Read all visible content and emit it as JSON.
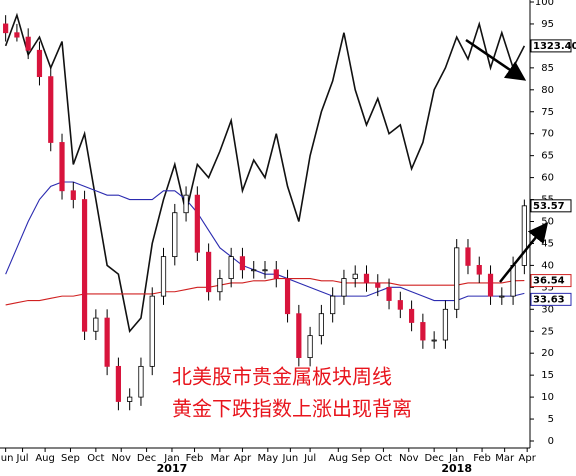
{
  "chart_data": {
    "type": "candlestick",
    "annotations": [
      "北美股市贵金属板块周线",
      "黄金下跌指数上涨出现背离"
    ],
    "last_price_label": "1323.40",
    "xlim": [
      0,
      94
    ],
    "xticks": [
      {
        "value": 1,
        "label": "Jun"
      },
      {
        "value": 4,
        "label": "Jul"
      },
      {
        "value": 8,
        "label": "Aug"
      },
      {
        "value": 12.5,
        "label": "Sep"
      },
      {
        "value": 17,
        "label": "Oct"
      },
      {
        "value": 21.5,
        "label": "Nov"
      },
      {
        "value": 26,
        "label": "Dec"
      },
      {
        "value": 30.5,
        "label": "Jan"
      },
      {
        "value": 34.5,
        "label": "Feb"
      },
      {
        "value": 39,
        "label": "Mar"
      },
      {
        "value": 43,
        "label": "Apr"
      },
      {
        "value": 47.5,
        "label": "May"
      },
      {
        "value": 51.5,
        "label": "Jun"
      },
      {
        "value": 55,
        "label": "Jul"
      },
      {
        "value": 60,
        "label": "Aug"
      },
      {
        "value": 64,
        "label": "Sep"
      },
      {
        "value": 68,
        "label": "Oct"
      },
      {
        "value": 72.5,
        "label": "Nov"
      },
      {
        "value": 77,
        "label": "Dec"
      },
      {
        "value": 81,
        "label": "Jan"
      },
      {
        "value": 85.5,
        "label": "Feb"
      },
      {
        "value": 89.5,
        "label": "Mar"
      },
      {
        "value": 93.5,
        "label": "Apr"
      }
    ],
    "year_ticks": [
      {
        "value": 30.5,
        "label": "2017"
      },
      {
        "value": 81,
        "label": "2018"
      }
    ],
    "ylim": [
      0,
      100
    ],
    "yticks": [
      0,
      5,
      10,
      15,
      20,
      25,
      30,
      35,
      40,
      45,
      50,
      55,
      60,
      65,
      70,
      75,
      80,
      85,
      90,
      95,
      100
    ],
    "x": [
      1,
      3,
      5,
      7,
      9,
      11,
      13,
      15,
      17,
      19,
      21,
      23,
      25,
      27,
      29,
      31,
      33,
      35,
      37,
      39,
      41,
      43,
      45,
      47,
      49,
      51,
      53,
      55,
      57,
      59,
      61,
      63,
      65,
      67,
      69,
      71,
      73,
      75,
      77,
      79,
      81,
      83,
      85,
      87,
      89,
      91,
      93
    ],
    "open": [
      95,
      93,
      92,
      89,
      83,
      68,
      57,
      55,
      25,
      28,
      17,
      9,
      10,
      17,
      33,
      42,
      52,
      56,
      43,
      34,
      37,
      42,
      39,
      39,
      39,
      37,
      29,
      19,
      24,
      29,
      33,
      37,
      38,
      36,
      35,
      32,
      30,
      27,
      23,
      23,
      30,
      44,
      40,
      38,
      33,
      33,
      40
    ],
    "high": [
      97,
      95,
      94,
      91,
      85,
      70,
      59,
      57,
      30,
      30,
      19,
      12,
      19,
      35,
      44,
      54,
      58,
      58,
      45,
      39,
      44,
      44,
      41,
      41,
      41,
      39,
      31,
      26,
      31,
      35,
      39,
      40,
      40,
      38,
      37,
      34,
      32,
      29,
      25,
      32,
      46,
      46,
      42,
      40,
      35,
      42,
      55
    ],
    "low": [
      91,
      91,
      87,
      81,
      66,
      55,
      53,
      23,
      23,
      15,
      7,
      7,
      8,
      15,
      31,
      40,
      50,
      41,
      32,
      32,
      35,
      37,
      37,
      37,
      35,
      27,
      17,
      17,
      22,
      27,
      31,
      35,
      34,
      33,
      30,
      28,
      25,
      21,
      21,
      21,
      28,
      38,
      36,
      31,
      31,
      31,
      38
    ],
    "close": [
      93,
      92,
      89,
      83,
      68,
      57,
      55,
      25,
      28,
      17,
      9,
      10,
      17,
      33,
      42,
      52,
      56,
      43,
      34,
      37,
      42,
      39,
      39,
      39,
      37,
      29,
      19,
      24,
      29,
      33,
      37,
      38,
      36,
      35,
      32,
      30,
      27,
      23,
      23,
      30,
      44,
      40,
      38,
      33,
      33,
      40,
      53.57
    ],
    "up_color": "#ffffff",
    "down_color": "#d8143c",
    "series": [
      {
        "color": "#111111",
        "values": [
          90,
          97,
          88,
          92,
          85,
          91,
          63,
          70,
          55,
          40,
          38,
          25,
          28,
          45,
          55,
          63,
          52,
          63,
          60,
          66,
          73,
          57,
          64,
          60,
          70,
          58,
          50,
          65,
          75,
          82,
          93,
          80,
          72,
          78,
          70,
          72,
          62,
          68,
          80,
          85,
          92,
          87,
          95,
          85,
          93,
          85,
          90
        ]
      },
      {
        "color": "#2b2bb0",
        "values": [
          38,
          44,
          50,
          55,
          58,
          59,
          59,
          58,
          57,
          56,
          56,
          55,
          55,
          55,
          57,
          57,
          55,
          52,
          48,
          44,
          42,
          40,
          39,
          38,
          38,
          37,
          36,
          35,
          34,
          33,
          33,
          33,
          33,
          34,
          35,
          35,
          34,
          33,
          32,
          32,
          32,
          33,
          33,
          33,
          33,
          33,
          33.63
        ]
      },
      {
        "color": "#d02020",
        "values": [
          31,
          31.5,
          32,
          32,
          32.5,
          33,
          33,
          33.5,
          33.5,
          33.5,
          33.5,
          33.5,
          33.5,
          33.5,
          34,
          34,
          34.5,
          35,
          35,
          35.5,
          36,
          36,
          36.5,
          36.5,
          37,
          37,
          37,
          37,
          36.5,
          36.5,
          36,
          36,
          36,
          36,
          36,
          35.5,
          35.5,
          35.5,
          35.5,
          35.5,
          35.5,
          36,
          36,
          36,
          36,
          36.5,
          36.54
        ]
      }
    ]
  }
}
